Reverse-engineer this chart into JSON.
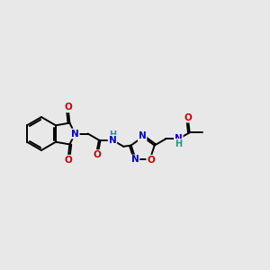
{
  "bg_color": "#e8e8e8",
  "atom_colors": {
    "C": "#000000",
    "N": "#0000cc",
    "O": "#cc0000",
    "H": "#2f8f8f"
  },
  "bond_color": "#000000",
  "bond_width": 1.4,
  "figsize": [
    3.0,
    3.0
  ],
  "dpi": 100,
  "xlim": [
    0,
    10
  ],
  "ylim": [
    2,
    8
  ]
}
